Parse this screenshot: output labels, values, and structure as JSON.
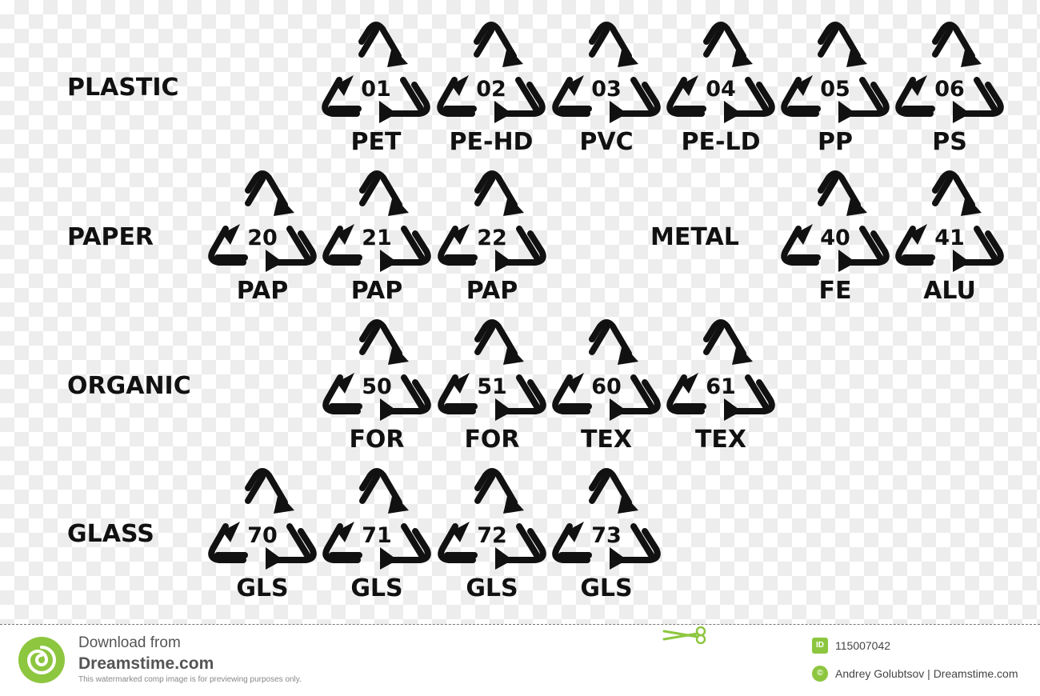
{
  "categories": [
    {
      "label": "PLASTIC"
    },
    {
      "label": "PAPER"
    },
    {
      "label": "METAL"
    },
    {
      "label": "ORGANIC"
    },
    {
      "label": "GLASS"
    }
  ],
  "symbols": [
    {
      "code": "01",
      "abbr": "PET"
    },
    {
      "code": "02",
      "abbr": "PE-HD"
    },
    {
      "code": "03",
      "abbr": "PVC"
    },
    {
      "code": "04",
      "abbr": "PE-LD"
    },
    {
      "code": "05",
      "abbr": "PP"
    },
    {
      "code": "06",
      "abbr": "PS"
    },
    {
      "code": "20",
      "abbr": "PAP"
    },
    {
      "code": "21",
      "abbr": "PAP"
    },
    {
      "code": "22",
      "abbr": "PAP"
    },
    {
      "code": "40",
      "abbr": "FE"
    },
    {
      "code": "41",
      "abbr": "ALU"
    },
    {
      "code": "50",
      "abbr": "FOR"
    },
    {
      "code": "51",
      "abbr": "FOR"
    },
    {
      "code": "60",
      "abbr": "TEX"
    },
    {
      "code": "61",
      "abbr": "TEX"
    },
    {
      "code": "70",
      "abbr": "GLS"
    },
    {
      "code": "71",
      "abbr": "GLS"
    },
    {
      "code": "72",
      "abbr": "GLS"
    },
    {
      "code": "73",
      "abbr": "GLS"
    }
  ],
  "footer": {
    "download_text": "Download from",
    "site_name": "Dreamstime.com",
    "disclaimer": "This watermarked comp image is for previewing purposes only.",
    "id_badge": "ID",
    "image_id": "115007042",
    "author_badge": "©",
    "author_credit": "Andrey Golubtsov | Dreamstime.com"
  },
  "colors": {
    "symbol": "#111111",
    "brand_green": "#8dc63f",
    "footer_text": "#555555"
  },
  "icons": {
    "recycle_symbol": "mobius-triangle-recycle-icon",
    "footer_logo": "dreamstime-swirl-logo-icon",
    "scissors": "scissors-icon"
  }
}
